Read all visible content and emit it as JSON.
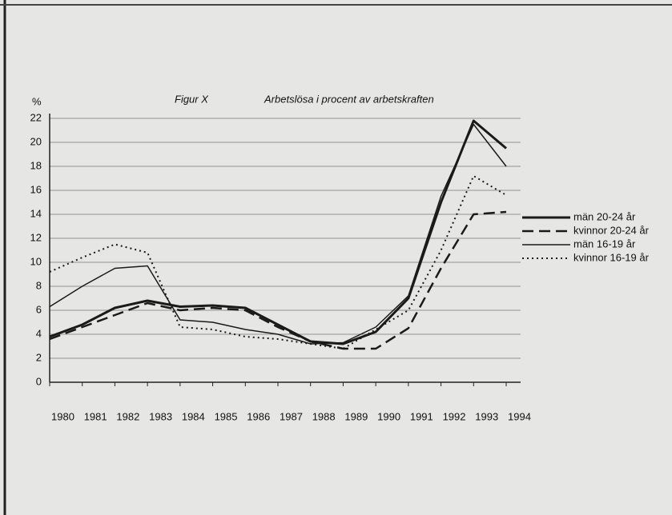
{
  "chart_data": {
    "type": "line",
    "title": "Figur X",
    "subtitle": "Arbetslösa i procent av arbetskraften",
    "y_label": "%",
    "categories": [
      "1980",
      "1981",
      "1982",
      "1983",
      "1984",
      "1985",
      "1986",
      "1987",
      "1988",
      "1989",
      "1990",
      "1991",
      "1992",
      "1993",
      "1994"
    ],
    "series": [
      {
        "name": "män 20-24 år",
        "color": "#1a1a1a",
        "dash": "solid",
        "width": 3,
        "values": [
          3.8,
          4.8,
          6.2,
          6.8,
          6.3,
          6.4,
          6.2,
          4.8,
          3.4,
          3.2,
          4.2,
          7.0,
          15.0,
          21.8,
          19.5
        ]
      },
      {
        "name": "kvinnor 20-24 år",
        "color": "#1a1a1a",
        "dash": "dashed",
        "width": 2.5,
        "values": [
          3.6,
          4.6,
          5.6,
          6.6,
          6.0,
          6.2,
          6.0,
          4.6,
          3.4,
          2.8,
          2.8,
          4.5,
          9.5,
          14.0,
          14.2
        ]
      },
      {
        "name": "män 16-19 år",
        "color": "#1a1a1a",
        "dash": "solid",
        "width": 1.5,
        "values": [
          6.3,
          8.0,
          9.5,
          9.7,
          5.2,
          5.0,
          4.4,
          4.0,
          3.2,
          3.3,
          4.6,
          7.2,
          15.5,
          21.5,
          18.0
        ]
      },
      {
        "name": "kvinnor 16-19 år",
        "color": "#1a1a1a",
        "dash": "dotted",
        "width": 2,
        "values": [
          9.2,
          10.4,
          11.5,
          10.8,
          4.6,
          4.4,
          3.8,
          3.6,
          3.2,
          2.8,
          4.4,
          6.0,
          11.0,
          17.2,
          15.6
        ]
      }
    ],
    "ylim": [
      0,
      22
    ],
    "yticks": [
      0,
      2,
      4,
      6,
      8,
      10,
      12,
      14,
      16,
      18,
      20,
      22
    ],
    "grid": true,
    "legend": "right"
  }
}
